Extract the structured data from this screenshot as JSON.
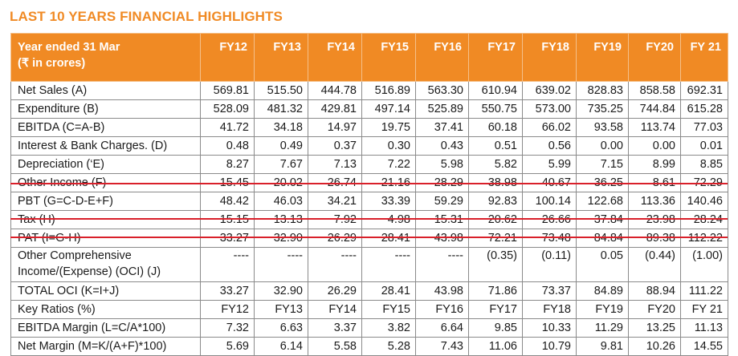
{
  "title": "LAST 10 YEARS FINANCIAL HIGHLIGHTS",
  "accent_color": "#f08a24",
  "rule_color": "#d9202a",
  "header": {
    "label_line1": "Year ended 31 Mar",
    "label_line2": "(₹ in crores)",
    "years": [
      "FY12",
      "FY13",
      "FY14",
      "FY15",
      "FY16",
      "FY17",
      "FY18",
      "FY19",
      "FY20",
      "FY 21"
    ]
  },
  "rows": [
    {
      "label": "Net Sales (A)",
      "values": [
        "569.81",
        "515.50",
        "444.78",
        "516.89",
        "563.30",
        "610.94",
        "639.02",
        "828.83",
        "858.58",
        "692.31"
      ]
    },
    {
      "label": "Expenditure (B)",
      "values": [
        "528.09",
        "481.32",
        "429.81",
        "497.14",
        "525.89",
        "550.75",
        "573.00",
        "735.25",
        "744.84",
        "615.28"
      ]
    },
    {
      "label": "EBITDA (C=A-B)",
      "values": [
        "41.72",
        "34.18",
        "14.97",
        "19.75",
        "37.41",
        "60.18",
        "66.02",
        "93.58",
        "113.74",
        "77.03"
      ]
    },
    {
      "label": "Interest & Bank  Charges. (D)",
      "values": [
        "0.48",
        "0.49",
        "0.37",
        "0.30",
        "0.43",
        "0.51",
        "0.56",
        "0.00",
        "0.00",
        "0.01"
      ]
    },
    {
      "label": "Depreciation (‘E)",
      "values": [
        "8.27",
        "7.67",
        "7.13",
        "7.22",
        "5.98",
        "5.82",
        "5.99",
        "7.15",
        "8.99",
        "8.85"
      ]
    },
    {
      "label": "Other Income (F)",
      "values": [
        "15.45",
        "20.02",
        "26.74",
        "21.16",
        "28.29",
        "38.98",
        "40.67",
        "36.25",
        "8.61",
        "72.29"
      ]
    },
    {
      "label": "PBT (G=C-D-E+F)",
      "values": [
        "48.42",
        "46.03",
        "34.21",
        "33.39",
        "59.29",
        "92.83",
        "100.14",
        "122.68",
        "113.36",
        "140.46"
      ]
    },
    {
      "label": "Tax (H)",
      "values": [
        "15.15",
        "13.13",
        "7.92",
        "4.98",
        "15.31",
        "20.62",
        "26.66",
        "37.84",
        "23.98",
        "28.24"
      ]
    },
    {
      "label": "PAT (I=G-H)",
      "values": [
        "33.27",
        "32.90",
        "26.29",
        "28.41",
        "43.98",
        "72.21",
        "73.48",
        "84.84",
        "89.38",
        "112.22"
      ]
    },
    {
      "label": "Other Comprehensive Income/(Expense) (OCI) (J)",
      "values": [
        "----",
        "----",
        "----",
        "----",
        "----",
        "(0.35)",
        "(0.11)",
        "0.05",
        "(0.44)",
        "(1.00)"
      ],
      "tall": true
    },
    {
      "label": "TOTAL OCI (K=I+J)",
      "values": [
        "33.27",
        "32.90",
        "26.29",
        "28.41",
        "43.98",
        "71.86",
        "73.37",
        "84.89",
        "88.94",
        "111.22"
      ]
    },
    {
      "label": "Key Ratios (%)",
      "values": [
        "FY12",
        "FY13",
        "FY14",
        "FY15",
        "FY16",
        "FY17",
        "FY18",
        "FY19",
        "FY20",
        "FY 21"
      ]
    },
    {
      "label": "EBITDA Margin (L=C/A*100)",
      "values": [
        "7.32",
        "6.63",
        "3.37",
        "3.82",
        "6.64",
        "9.85",
        "10.33",
        "11.29",
        "13.25",
        "11.13"
      ]
    },
    {
      "label": "Net Margin  (M=K/(A+F)*100)",
      "values": [
        "5.69",
        "6.14",
        "5.58",
        "5.28",
        "7.43",
        "11.06",
        "10.79",
        "9.81",
        "10.26",
        "14.55"
      ]
    }
  ]
}
